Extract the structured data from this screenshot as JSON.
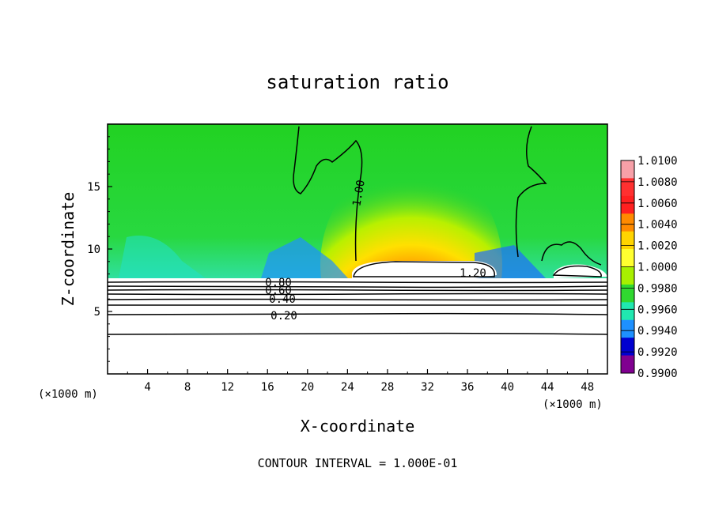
{
  "chart_data": {
    "type": "heatmap",
    "title": "saturation ratio",
    "xlabel": "X-coordinate",
    "ylabel": "Z-coordinate",
    "x_unit_label": "(×1000 m)",
    "xlim": [
      0,
      50
    ],
    "ylim": [
      0,
      20
    ],
    "x_ticks": [
      "4",
      "8",
      "12",
      "16",
      "20",
      "24",
      "28",
      "32",
      "36",
      "40",
      "44",
      "48"
    ],
    "y_ticks": [
      "5",
      "10",
      "15"
    ],
    "colorbar": {
      "levels": [
        "1.0100",
        "1.0080",
        "1.0060",
        "1.0040",
        "1.0020",
        "1.0000",
        "0.9980",
        "0.9960",
        "0.9940",
        "0.9920",
        "0.9900"
      ],
      "colors": [
        "#f7a0a8",
        "#ff3030",
        "#ff2020",
        "#ff8a00",
        "#ffd400",
        "#ffff30",
        "#a8f000",
        "#30d830",
        "#20e8b0",
        "#1e90ff",
        "#0000d0",
        "#800090"
      ]
    },
    "contour_labels": [
      "1.00",
      "1.20",
      "0.80",
      "0.60",
      "0.40",
      "0.20"
    ],
    "footer": "CONTOUR INTERVAL = 1.000E-01"
  }
}
